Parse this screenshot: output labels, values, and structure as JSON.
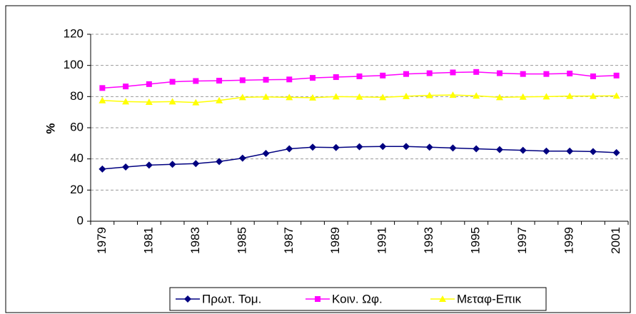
{
  "chart_data": {
    "type": "line",
    "y_label": "%",
    "categories": [
      "1979",
      null,
      "1981",
      null,
      "1983",
      null,
      "1985",
      null,
      "1987",
      null,
      "1989",
      null,
      "1991",
      null,
      "1993",
      null,
      "1995",
      null,
      "1997",
      null,
      "1999",
      null,
      "2001"
    ],
    "series": [
      {
        "name": "Πρωτ. Τομ.",
        "color": "#000080",
        "marker": "diamond",
        "values": [
          33.5,
          34.8,
          36,
          36.5,
          37,
          38.3,
          40.5,
          43.5,
          46.5,
          47.5,
          47.3,
          47.8,
          48,
          48,
          47.5,
          47,
          46.5,
          46,
          45.5,
          45,
          45,
          44.7,
          44
        ]
      },
      {
        "name": "Κοιν. Ωφ.",
        "color": "#ff00ff",
        "marker": "square",
        "values": [
          85.5,
          86.5,
          88,
          89.5,
          90,
          90.2,
          90.5,
          90.8,
          91,
          92,
          92.5,
          93,
          93.5,
          94.5,
          95,
          95.5,
          95.8,
          95,
          94.5,
          94.5,
          94.8,
          93,
          93.5
        ]
      },
      {
        "name": "Μεταφ-Επικ",
        "color": "#ffff00",
        "marker": "triangle",
        "values": [
          77.5,
          76.8,
          76.5,
          76.8,
          76.2,
          77.5,
          79.5,
          79.8,
          79.5,
          79.3,
          80,
          79.8,
          79.5,
          80.2,
          80.8,
          81,
          80.5,
          79.5,
          79.8,
          80,
          80.3,
          80.3,
          80.5
        ]
      }
    ],
    "ylim": [
      0,
      120
    ],
    "yticks": [
      0,
      20,
      40,
      60,
      80,
      100,
      120
    ],
    "grid": true,
    "legend": "bottom"
  }
}
